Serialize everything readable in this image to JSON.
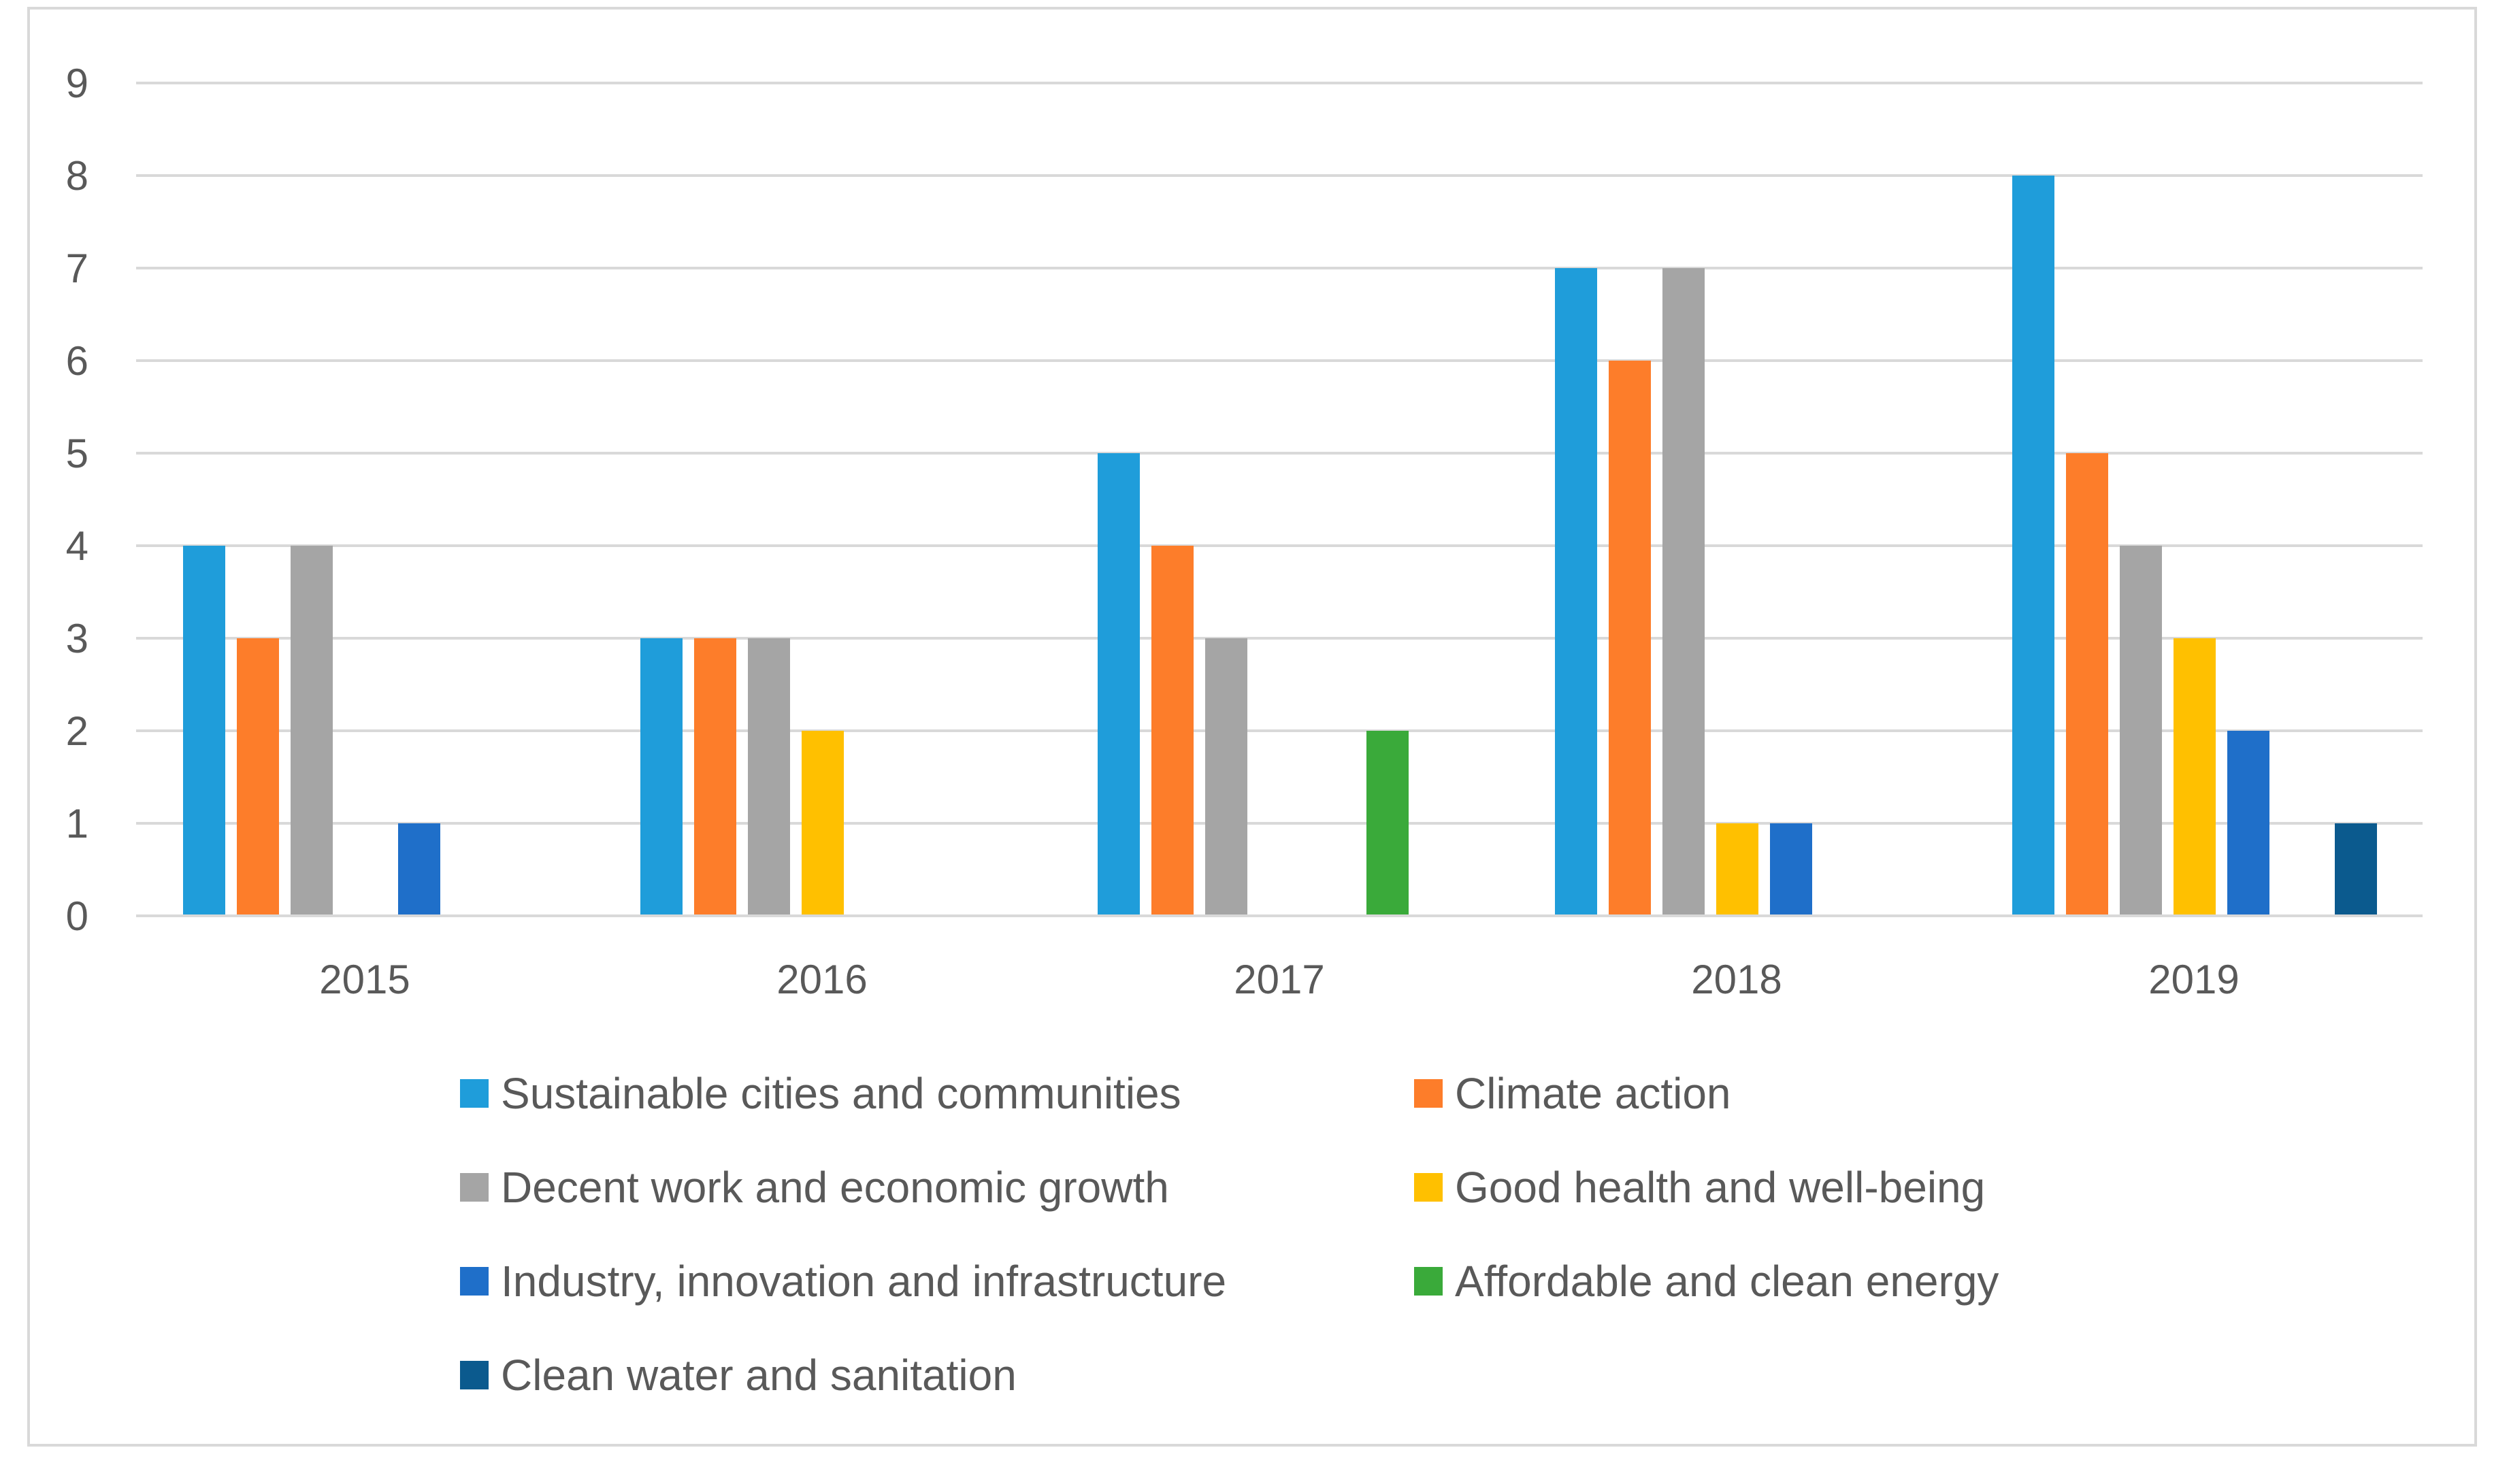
{
  "chart_data": {
    "type": "bar",
    "title": "",
    "xlabel": "",
    "ylabel": "",
    "ylim": [
      0,
      9
    ],
    "yticks": [
      0,
      1,
      2,
      3,
      4,
      5,
      6,
      7,
      8,
      9
    ],
    "grid": true,
    "legend_position": "bottom",
    "categories": [
      "2015",
      "2016",
      "2017",
      "2018",
      "2019"
    ],
    "series": [
      {
        "name": "Sustainable cities and communities",
        "color": "#1f9dda",
        "values": [
          4,
          3,
          5,
          7,
          8
        ]
      },
      {
        "name": "Climate action",
        "color": "#fd7d2a",
        "values": [
          3,
          3,
          4,
          6,
          5
        ]
      },
      {
        "name": "Decent work and economic growth",
        "color": "#a5a5a5",
        "values": [
          4,
          3,
          3,
          7,
          4
        ]
      },
      {
        "name": "Good health and well-being",
        "color": "#ffc000",
        "values": [
          0,
          2,
          0,
          1,
          3
        ]
      },
      {
        "name": "Industry, innovation and infrastructure",
        "color": "#1f6fc9",
        "values": [
          1,
          0,
          0,
          1,
          2
        ]
      },
      {
        "name": "Affordable and clean energy",
        "color": "#3aaa3a",
        "values": [
          0,
          0,
          2,
          0,
          0
        ]
      },
      {
        "name": "Clean water and sanitation",
        "color": "#0b5a8e",
        "values": [
          0,
          0,
          0,
          0,
          1
        ]
      }
    ]
  }
}
